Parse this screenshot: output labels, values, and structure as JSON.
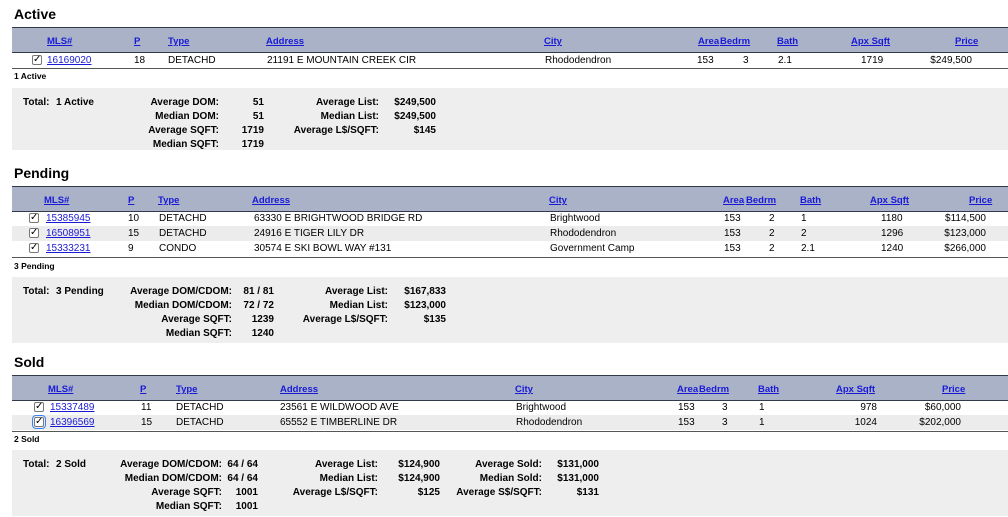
{
  "columns": {
    "mls": "MLS#",
    "p": "P",
    "type": "Type",
    "address": "Address",
    "city": "City",
    "area": "Area",
    "bedrm": "Bedrm",
    "bath": "Bath",
    "apx_sqft": "Apx Sqft",
    "price": "Price"
  },
  "check_glyph": "✓",
  "active": {
    "title": "Active",
    "rows": [
      {
        "mls": "16169020",
        "p": "18",
        "type": "DETACHD",
        "address": "21191 E MOUNTAIN CREEK CIR",
        "city": "Rhododendron",
        "area": "153",
        "bedrm": "3",
        "bath": "2.1",
        "apx_sqft": "1719",
        "price": "$249,500"
      }
    ],
    "count_label": "1 Active",
    "summary": {
      "total_label": "Total:",
      "total_value": "1 Active",
      "avg_dom_label": "Average DOM:",
      "avg_dom": "51",
      "med_dom_label": "Median DOM:",
      "med_dom": "51",
      "avg_sqft_label": "Average SQFT:",
      "avg_sqft": "1719",
      "med_sqft_label": "Median SQFT:",
      "med_sqft": "1719",
      "avg_list_label": "Average List:",
      "avg_list": "$249,500",
      "med_list_label": "Median List:",
      "med_list": "$249,500",
      "avg_lsqft_label": "Average L$/SQFT:",
      "avg_lsqft": "$145"
    }
  },
  "pending": {
    "title": "Pending",
    "rows": [
      {
        "mls": "15385945",
        "p": "10",
        "type": "DETACHD",
        "address": "63330 E BRIGHTWOOD BRIDGE RD",
        "city": "Brightwood",
        "area": "153",
        "bedrm": "2",
        "bath": "1",
        "apx_sqft": "1180",
        "price": "$114,500"
      },
      {
        "mls": "16508951",
        "p": "15",
        "type": "DETACHD",
        "address": "24916 E TIGER LILY DR",
        "city": "Rhododendron",
        "area": "153",
        "bedrm": "2",
        "bath": "2",
        "apx_sqft": "1296",
        "price": "$123,000"
      },
      {
        "mls": "15333231",
        "p": "9",
        "type": "CONDO",
        "address": "30574 E SKI BOWL WAY #131",
        "city": "Government Camp",
        "area": "153",
        "bedrm": "2",
        "bath": "2.1",
        "apx_sqft": "1240",
        "price": "$266,000"
      }
    ],
    "count_label": "3 Pending",
    "summary": {
      "total_label": "Total:",
      "total_value": "3 Pending",
      "avg_dom_label": "Average DOM/CDOM:",
      "avg_dom": "81 / 81",
      "med_dom_label": "Median DOM/CDOM:",
      "med_dom": "72 / 72",
      "avg_sqft_label": "Average SQFT:",
      "avg_sqft": "1239",
      "med_sqft_label": "Median SQFT:",
      "med_sqft": "1240",
      "avg_list_label": "Average List:",
      "avg_list": "$167,833",
      "med_list_label": "Median List:",
      "med_list": "$123,000",
      "avg_lsqft_label": "Average L$/SQFT:",
      "avg_lsqft": "$135"
    }
  },
  "sold": {
    "title": "Sold",
    "rows": [
      {
        "mls": "15337489",
        "p": "11",
        "type": "DETACHD",
        "address": "23561 E WILDWOOD AVE",
        "city": "Brightwood",
        "area": "153",
        "bedrm": "3",
        "bath": "1",
        "apx_sqft": "978",
        "price": "$60,000"
      },
      {
        "mls": "16396569",
        "p": "15",
        "type": "DETACHD",
        "address": "65552 E TIMBERLINE DR",
        "city": "Rhododendron",
        "area": "153",
        "bedrm": "3",
        "bath": "1",
        "apx_sqft": "1024",
        "price": "$202,000"
      }
    ],
    "count_label": "2 Sold",
    "summary": {
      "total_label": "Total:",
      "total_value": "2 Sold",
      "avg_dom_label": "Average DOM/CDOM:",
      "avg_dom": "64 / 64",
      "med_dom_label": "Median DOM/CDOM:",
      "med_dom": "64 / 64",
      "avg_sqft_label": "Average SQFT:",
      "avg_sqft": "1001",
      "med_sqft_label": "Median SQFT:",
      "med_sqft": "1001",
      "avg_list_label": "Average List:",
      "avg_list": "$124,900",
      "med_list_label": "Median List:",
      "med_list": "$124,900",
      "avg_lsqft_label": "Average L$/SQFT:",
      "avg_lsqft": "$125",
      "avg_sold_label": "Average Sold:",
      "avg_sold": "$131,000",
      "med_sold_label": "Median Sold:",
      "med_sold": "$131,000",
      "avg_ssqft_label": "Average S$/SQFT:",
      "avg_ssqft": "$131"
    }
  }
}
